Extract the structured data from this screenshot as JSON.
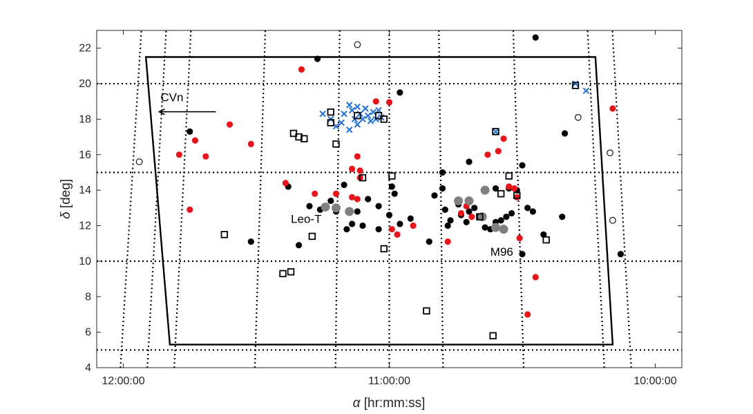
{
  "chart_data": {
    "type": "scatter",
    "title": "",
    "xlabel_symbol": "α",
    "xlabel_unit": "[hr:mm:ss]",
    "ylabel_symbol": "δ",
    "ylabel_unit": "[deg]",
    "x_axis": "right ascension in hours, increasing to the left",
    "xlim_hours": [
      9.9,
      12.1
    ],
    "ylim": [
      4,
      23
    ],
    "xtick_values_hours": [
      12.0,
      11.0,
      10.0
    ],
    "xtick_labels": [
      "12:00:00",
      "11:00:00",
      "10:00:00"
    ],
    "ytick_values": [
      4,
      6,
      8,
      10,
      12,
      14,
      16,
      18,
      20,
      22
    ],
    "ytick_labels": [
      "4",
      "6",
      "8",
      "10",
      "12",
      "14",
      "16",
      "18",
      "20",
      "22"
    ],
    "grid": {
      "style": "dotted",
      "dec_lines": [
        5,
        10,
        15,
        20
      ],
      "ra_lines_hours": [
        10.1,
        10.2,
        10.5,
        10.8,
        11.0,
        11.2,
        11.5,
        11.8,
        11.9,
        12.0
      ]
    },
    "footprint_hours_deg": [
      [
        11.915,
        21.5
      ],
      [
        10.225,
        21.5
      ],
      [
        10.16,
        5.3
      ],
      [
        11.825,
        5.3
      ]
    ],
    "annotations": [
      {
        "text": "CVn",
        "x": 11.86,
        "y": 19.0,
        "arrow": true
      },
      {
        "text": "Leo-T",
        "x": 11.37,
        "y": 12.15
      },
      {
        "text": "M96",
        "x": 10.62,
        "y": 10.3
      }
    ],
    "series": [
      {
        "marker": "filled-circle",
        "color": "#000000",
        "points": [
          [
            11.75,
            17.3
          ],
          [
            11.27,
            21.4
          ],
          [
            10.96,
            19.5
          ],
          [
            10.45,
            22.6
          ],
          [
            10.34,
            17.2
          ],
          [
            11.52,
            11.1
          ],
          [
            11.34,
            10.9
          ],
          [
            11.38,
            14.2
          ],
          [
            11.3,
            13.1
          ],
          [
            11.26,
            12.9
          ],
          [
            11.22,
            13.4
          ],
          [
            11.2,
            12.8
          ],
          [
            11.17,
            14.3
          ],
          [
            11.14,
            12.1
          ],
          [
            11.12,
            12.8
          ],
          [
            11.16,
            11.8
          ],
          [
            11.08,
            13.5
          ],
          [
            11.04,
            13.1
          ],
          [
            11.0,
            12.6
          ],
          [
            10.99,
            14.2
          ],
          [
            10.98,
            13.8
          ],
          [
            10.96,
            12.1
          ],
          [
            11.1,
            12.0
          ],
          [
            10.92,
            12.4
          ],
          [
            10.85,
            11.1
          ],
          [
            10.8,
            15.0
          ],
          [
            10.83,
            13.7
          ],
          [
            10.8,
            14.1
          ],
          [
            10.79,
            12.9
          ],
          [
            10.77,
            12.3
          ],
          [
            10.73,
            12.6
          ],
          [
            10.71,
            12.2
          ],
          [
            10.68,
            13.0
          ],
          [
            10.66,
            12.5
          ],
          [
            10.64,
            11.9
          ],
          [
            10.62,
            11.8
          ],
          [
            10.6,
            12.2
          ],
          [
            10.58,
            12.3
          ],
          [
            10.56,
            12.5
          ],
          [
            10.54,
            12.7
          ],
          [
            10.7,
            15.6
          ],
          [
            10.6,
            14.1
          ],
          [
            10.55,
            14.1
          ],
          [
            10.52,
            14.0
          ],
          [
            10.5,
            15.4
          ],
          [
            10.48,
            13.0
          ],
          [
            10.46,
            12.8
          ],
          [
            10.42,
            11.5
          ],
          [
            10.35,
            12.5
          ],
          [
            10.5,
            10.4
          ],
          [
            10.13,
            10.4
          ],
          [
            11.04,
            11.8
          ],
          [
            10.78,
            12.0
          ],
          [
            10.74,
            13.2
          ],
          [
            10.7,
            12.8
          ]
        ]
      },
      {
        "marker": "filled-circle",
        "color": "#e8151b",
        "points": [
          [
            11.33,
            20.8
          ],
          [
            11.05,
            19.0
          ],
          [
            11.0,
            18.95
          ],
          [
            11.6,
            17.7
          ],
          [
            11.52,
            16.6
          ],
          [
            11.79,
            16.0
          ],
          [
            11.73,
            16.8
          ],
          [
            11.69,
            15.9
          ],
          [
            11.75,
            12.9
          ],
          [
            11.39,
            14.4
          ],
          [
            11.28,
            13.8
          ],
          [
            11.2,
            13.8
          ],
          [
            11.14,
            13.6
          ],
          [
            11.12,
            13.5
          ],
          [
            11.12,
            15.9
          ],
          [
            11.14,
            15.2
          ],
          [
            11.11,
            15.1
          ],
          [
            11.11,
            14.7
          ],
          [
            10.99,
            11.8
          ],
          [
            10.97,
            11.5
          ],
          [
            10.91,
            12.0
          ],
          [
            10.78,
            11.1
          ],
          [
            10.73,
            12.7
          ],
          [
            10.71,
            13.1
          ],
          [
            10.69,
            12.5
          ],
          [
            10.63,
            16.0
          ],
          [
            10.59,
            16.2
          ],
          [
            10.57,
            16.9
          ],
          [
            10.55,
            14.2
          ],
          [
            10.53,
            14.1
          ],
          [
            10.52,
            13.6
          ],
          [
            10.51,
            11.3
          ],
          [
            10.45,
            9.1
          ],
          [
            10.48,
            7.0
          ],
          [
            10.16,
            18.6
          ]
        ]
      },
      {
        "marker": "filled-circle",
        "color": "#808080",
        "size": "large",
        "points": [
          [
            11.24,
            13.05
          ],
          [
            11.2,
            13.0
          ],
          [
            11.15,
            12.8
          ],
          [
            10.7,
            13.4
          ],
          [
            10.64,
            14.0
          ],
          [
            10.6,
            11.9
          ],
          [
            10.57,
            11.8
          ],
          [
            10.65,
            12.5
          ],
          [
            10.74,
            13.4
          ]
        ]
      },
      {
        "marker": "cross",
        "color": "#1f6fd1",
        "points": [
          [
            11.25,
            18.3
          ],
          [
            11.22,
            18.0
          ],
          [
            11.2,
            17.6
          ],
          [
            11.18,
            17.8
          ],
          [
            11.17,
            18.3
          ],
          [
            11.15,
            18.8
          ],
          [
            11.14,
            18.5
          ],
          [
            11.13,
            18.0
          ],
          [
            11.12,
            17.7
          ],
          [
            11.11,
            18.3
          ],
          [
            11.1,
            18.0
          ],
          [
            11.09,
            18.6
          ],
          [
            11.08,
            18.2
          ],
          [
            11.07,
            17.9
          ],
          [
            11.06,
            18.4
          ],
          [
            11.05,
            18.0
          ],
          [
            11.04,
            18.5
          ],
          [
            11.03,
            18.1
          ],
          [
            11.15,
            17.4
          ],
          [
            11.12,
            18.7
          ],
          [
            10.6,
            17.3
          ],
          [
            10.3,
            20.0
          ],
          [
            10.26,
            19.6
          ]
        ]
      },
      {
        "marker": "open-square",
        "color": "#000000",
        "points": [
          [
            11.22,
            18.4
          ],
          [
            11.12,
            18.2
          ],
          [
            11.36,
            17.2
          ],
          [
            11.34,
            17.0
          ],
          [
            11.32,
            16.9
          ],
          [
            11.22,
            17.8
          ],
          [
            11.2,
            16.6
          ],
          [
            11.04,
            18.2
          ],
          [
            11.02,
            18.0
          ],
          [
            11.1,
            14.7
          ],
          [
            10.99,
            14.8
          ],
          [
            11.62,
            11.5
          ],
          [
            11.29,
            11.4
          ],
          [
            11.4,
            9.3
          ],
          [
            11.37,
            9.4
          ],
          [
            11.02,
            10.7
          ],
          [
            10.86,
            7.2
          ],
          [
            10.61,
            5.8
          ],
          [
            10.6,
            17.3
          ],
          [
            10.55,
            14.8
          ],
          [
            10.58,
            13.8
          ],
          [
            10.66,
            12.5
          ],
          [
            10.52,
            13.7
          ],
          [
            10.41,
            11.2
          ],
          [
            10.3,
            19.9
          ]
        ]
      },
      {
        "marker": "open-circle",
        "color": "#000000",
        "points": [
          [
            11.94,
            15.6
          ],
          [
            11.12,
            22.2
          ],
          [
            10.29,
            18.1
          ],
          [
            10.17,
            16.1
          ],
          [
            10.16,
            12.3
          ]
        ]
      }
    ]
  }
}
